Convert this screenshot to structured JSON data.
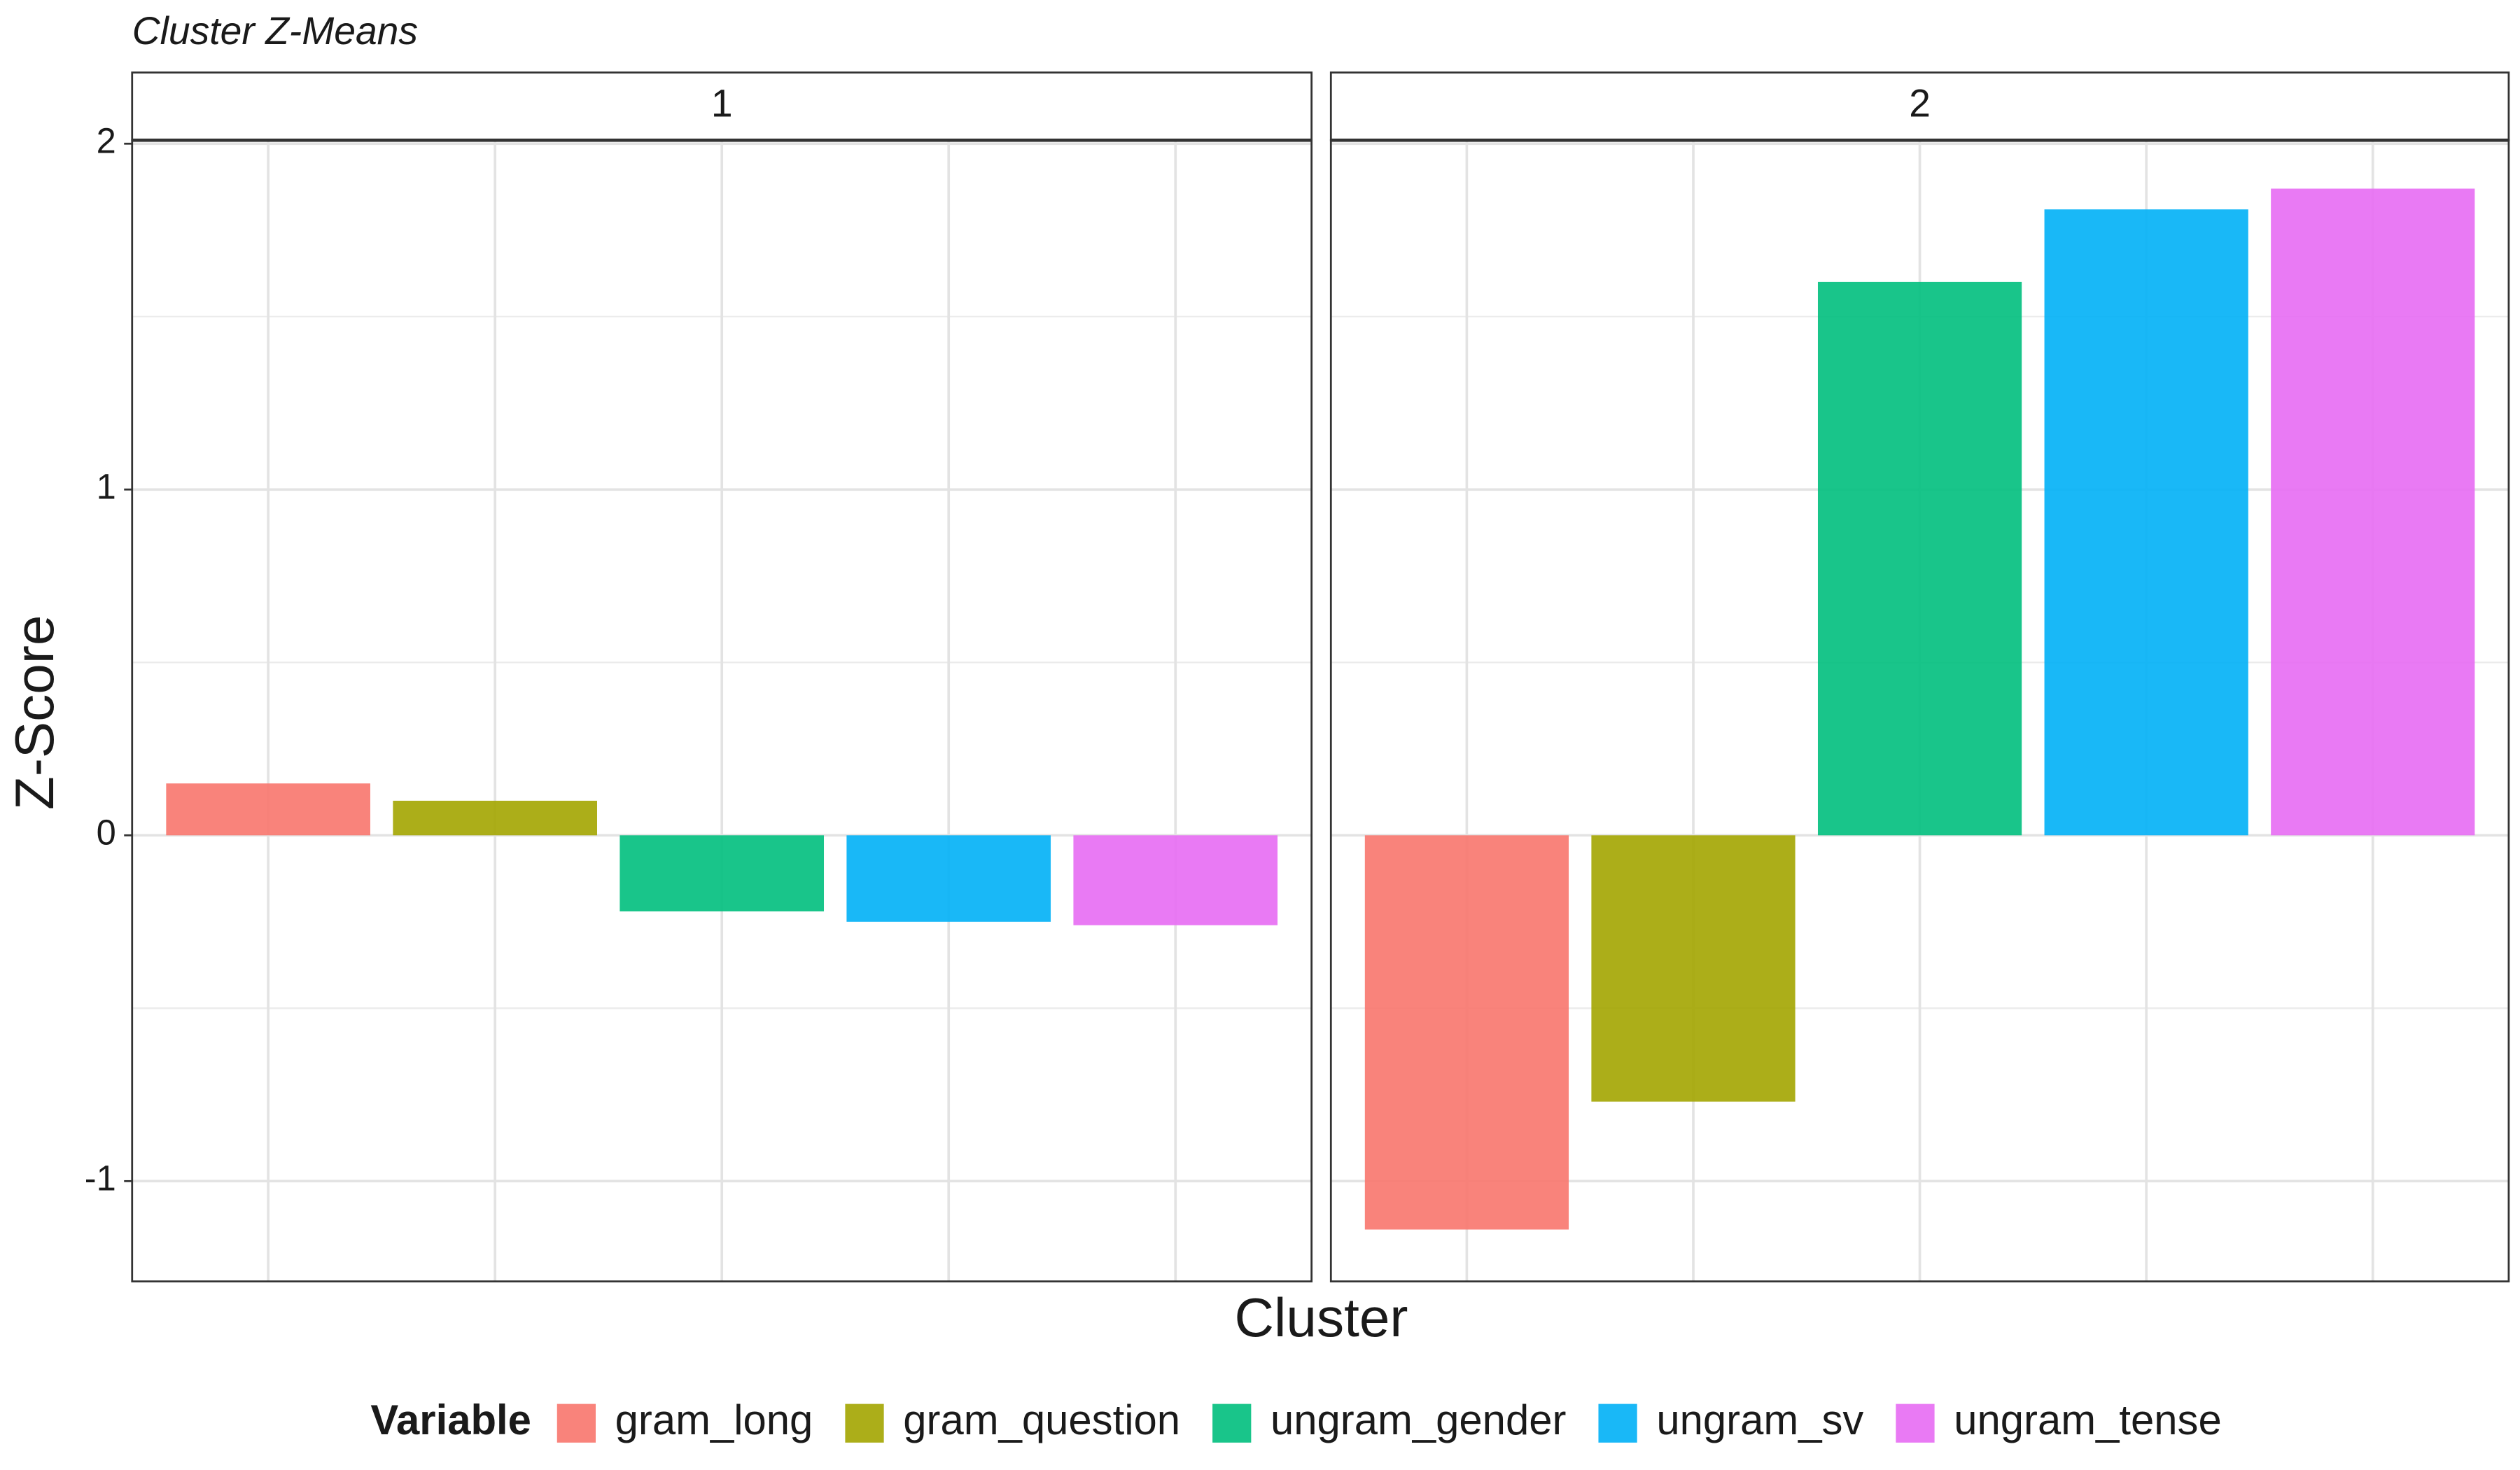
{
  "chart_data": {
    "type": "bar",
    "title": "Cluster Z-Means",
    "x_label": "Cluster",
    "y_label": "Z-Score",
    "legend_title": "Variable",
    "legend": "bottom",
    "grid": true,
    "categories": [
      "1",
      "2"
    ],
    "series": [
      {
        "name": "gram_long",
        "color": "#F8766D",
        "values": [
          0.15,
          -1.14
        ]
      },
      {
        "name": "gram_question",
        "color": "#A3A500",
        "values": [
          0.1,
          -0.77
        ]
      },
      {
        "name": "ungram_gender",
        "color": "#00BF7D",
        "values": [
          -0.22,
          1.6
        ]
      },
      {
        "name": "ungram_sv",
        "color": "#00B0F6",
        "values": [
          -0.25,
          1.81
        ]
      },
      {
        "name": "ungram_tense",
        "color": "#E76BF3",
        "values": [
          -0.26,
          1.87
        ]
      }
    ],
    "ylim": [
      -1.29,
      2.01
    ],
    "yticks": [
      -1,
      0,
      1,
      2
    ]
  }
}
